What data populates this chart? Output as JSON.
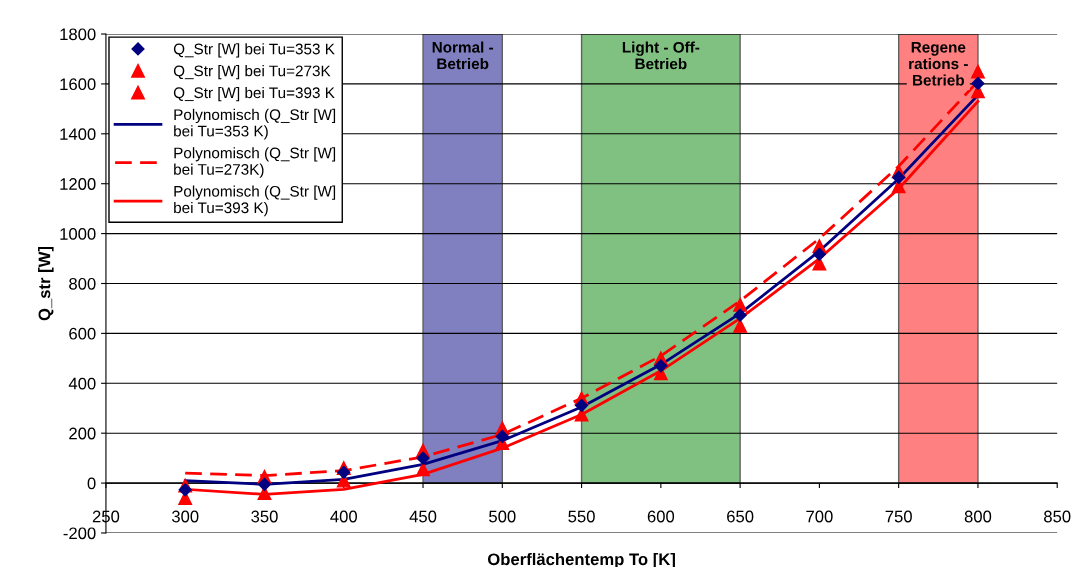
{
  "chart_data": {
    "type": "scatter",
    "xlabel": "Oberflächentemp To [K]",
    "ylabel": "Q_str [W]",
    "x": [
      300,
      350,
      400,
      450,
      500,
      550,
      600,
      650,
      700,
      750,
      800
    ],
    "xlim": [
      250,
      850
    ],
    "xticks": [
      250,
      300,
      350,
      400,
      450,
      500,
      550,
      600,
      650,
      700,
      750,
      800,
      850
    ],
    "ylim": [
      -200,
      1800
    ],
    "yticks": [
      -200,
      0,
      200,
      400,
      600,
      800,
      1000,
      1200,
      1400,
      1600,
      1800
    ],
    "grid": "y",
    "legend": "top left",
    "series": [
      {
        "name": "Q_Str [W] bei Tu=353 K",
        "marker": "diamond",
        "color": "#000080",
        "values": [
          -27,
          -5,
          43,
          100,
          187,
          311,
          470,
          673,
          917,
          1225,
          1602
        ]
      },
      {
        "name": "Q_Str [W] bei Tu=273K",
        "marker": "triangle",
        "color": "#ff0000",
        "values": [
          -10,
          25,
          60,
          130,
          220,
          340,
          500,
          715,
          950,
          1250,
          1650
        ]
      },
      {
        "name": "Q_Str [W] bei Tu=393 K",
        "marker": "triangle",
        "color": "#ff0000",
        "values": [
          -60,
          -40,
          10,
          55,
          160,
          275,
          440,
          630,
          880,
          1190,
          1570
        ]
      },
      {
        "name": "Polynomisch (Q_Str [W]\nbei Tu=353 K)",
        "type": "line",
        "line_style": "solid",
        "color": "#000080",
        "values": [
          10,
          -5,
          15,
          75,
          170,
          305,
          475,
          680,
          930,
          1220,
          1555
        ]
      },
      {
        "name": "Polynomisch (Q_Str [W]\nbei Tu=273K)",
        "type": "line",
        "line_style": "dashed",
        "color": "#ff0000",
        "values": [
          40,
          30,
          50,
          105,
          195,
          340,
          510,
          730,
          980,
          1270,
          1610
        ]
      },
      {
        "name": "Polynomisch (Q_Str [W]\nbei Tu=393 K)",
        "type": "line",
        "line_style": "solid",
        "color": "#ff0000",
        "values": [
          -25,
          -45,
          -25,
          35,
          140,
          275,
          450,
          660,
          900,
          1180,
          1530
        ]
      }
    ],
    "bands": [
      {
        "axis": "x",
        "from": 450,
        "to": 500,
        "label": "Normal -\nBetrieb",
        "color": "#8080c0"
      },
      {
        "axis": "x",
        "from": 550,
        "to": 650,
        "label": "Light - Off-\nBetrieb",
        "color": "#80c080"
      },
      {
        "axis": "x",
        "from": 750,
        "to": 800,
        "label": "Regene\nrations -\nBetrieb",
        "color": "#ff8080"
      }
    ]
  }
}
